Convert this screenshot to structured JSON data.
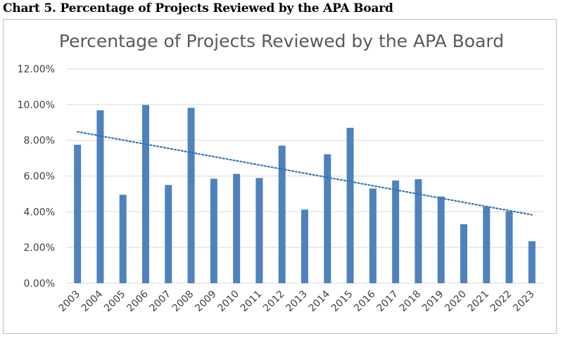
{
  "caption": "Chart 5. Percentage of Projects Reviewed by the APA Board",
  "chart_data": {
    "type": "bar",
    "title": "Percentage of Projects Reviewed by the APA Board",
    "xlabel": "",
    "ylabel": "",
    "categories": [
      "2003",
      "2004",
      "2005",
      "2006",
      "2007",
      "2008",
      "2009",
      "2010",
      "2011",
      "2012",
      "2013",
      "2014",
      "2015",
      "2016",
      "2017",
      "2018",
      "2019",
      "2020",
      "2021",
      "2022",
      "2023"
    ],
    "values": [
      7.75,
      9.68,
      4.95,
      9.98,
      5.5,
      9.82,
      5.85,
      6.12,
      5.89,
      7.7,
      4.12,
      7.22,
      8.7,
      5.3,
      5.75,
      5.82,
      4.85,
      3.3,
      4.28,
      4.02,
      2.35
    ],
    "ylim": [
      0,
      12
    ],
    "yticks": [
      "0.00%",
      "2.00%",
      "4.00%",
      "6.00%",
      "8.00%",
      "10.00%",
      "12.00%"
    ],
    "trendline": {
      "type": "linear",
      "style": "dotted",
      "start": 8.48,
      "end": 3.83
    },
    "grid": true,
    "legend": "none",
    "colors": {
      "bar": "#4f81bd",
      "trendline": "#2e75b6",
      "grid": "#d9d9d9"
    }
  }
}
